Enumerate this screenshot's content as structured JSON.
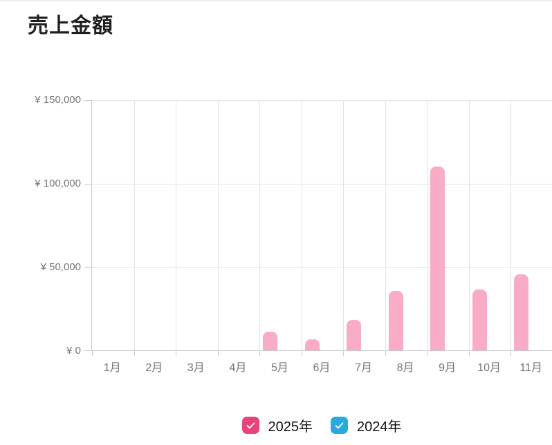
{
  "page": {
    "title": "売上金額",
    "background": "#ffffff",
    "top_border_color": "#ededed"
  },
  "chart_data": {
    "type": "bar",
    "title": "売上金額",
    "categories": [
      "1月",
      "2月",
      "3月",
      "4月",
      "5月",
      "6月",
      "7月",
      "8月",
      "9月",
      "10月",
      "11月"
    ],
    "series": [
      {
        "name": "2025年",
        "color": "#f9abc8",
        "values": [
          0,
          0,
          0,
          0,
          11000,
          6500,
          18000,
          35500,
          110000,
          36500,
          45500
        ]
      },
      {
        "name": "2024年",
        "color": "#29a9e0",
        "values": [
          0,
          0,
          0,
          0,
          0,
          0,
          0,
          0,
          0,
          0,
          0
        ]
      }
    ],
    "xlabel": "",
    "ylabel": "",
    "ylim": [
      0,
      150000
    ],
    "grid": true,
    "y_ticks": [
      {
        "value": 150000,
        "label": "¥ 150,000"
      },
      {
        "value": 100000,
        "label": "¥ 100,000"
      },
      {
        "value": 50000,
        "label": "¥ 50,000"
      },
      {
        "value": 0,
        "label": "¥ 0"
      }
    ],
    "legend_position": "bottom",
    "legend": [
      {
        "label": "2025年",
        "checked": true,
        "checkbox_color": "#e8437c"
      },
      {
        "label": "2024年",
        "checked": true,
        "checkbox_color": "#29a9e0"
      }
    ]
  },
  "colors": {
    "bar_fill": "#f9abc8",
    "grid_line": "#e3e3e3",
    "axis_line": "#c9c9c9",
    "tick_text": "#757575",
    "title_text": "#1f1f1f",
    "legend_text": "#111111",
    "checkmark": "#ffffff"
  }
}
